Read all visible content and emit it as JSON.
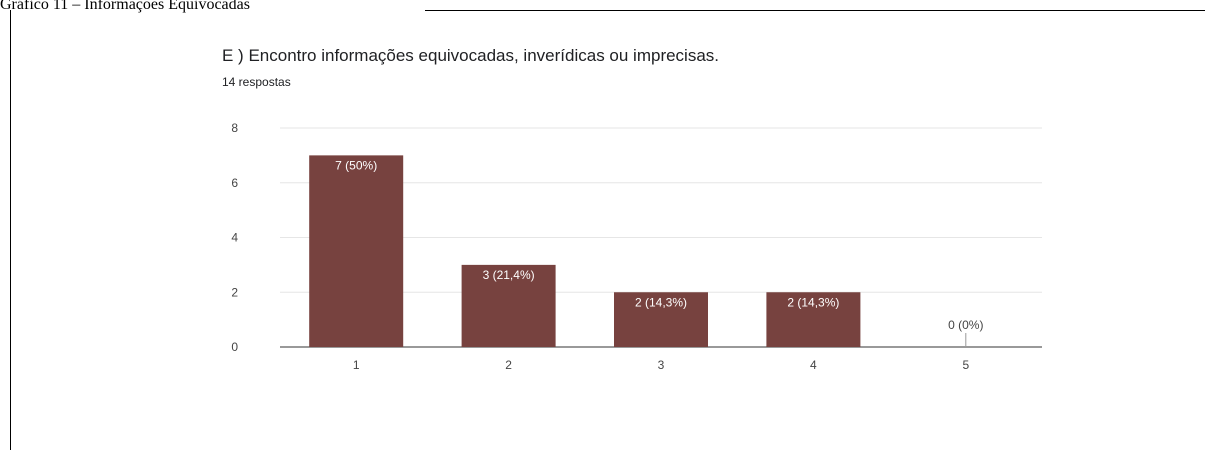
{
  "caption": "Gráfico 11 – Informações Equivocadas",
  "chart_data": {
    "type": "bar",
    "title": "E ) Encontro informações equivocadas, inverídicas ou imprecisas.",
    "subtitle": "14 respostas",
    "categories": [
      "1",
      "2",
      "3",
      "4",
      "5"
    ],
    "values": [
      7,
      3,
      2,
      2,
      0
    ],
    "value_labels": [
      "7 (50%)",
      "3 (21,4%)",
      "2 (14,3%)",
      "2 (14,3%)",
      "0 (0%)"
    ],
    "color": "#77423f",
    "ylim": [
      0,
      8
    ],
    "yticks": [
      0,
      2,
      4,
      6,
      8
    ],
    "grid": true
  }
}
